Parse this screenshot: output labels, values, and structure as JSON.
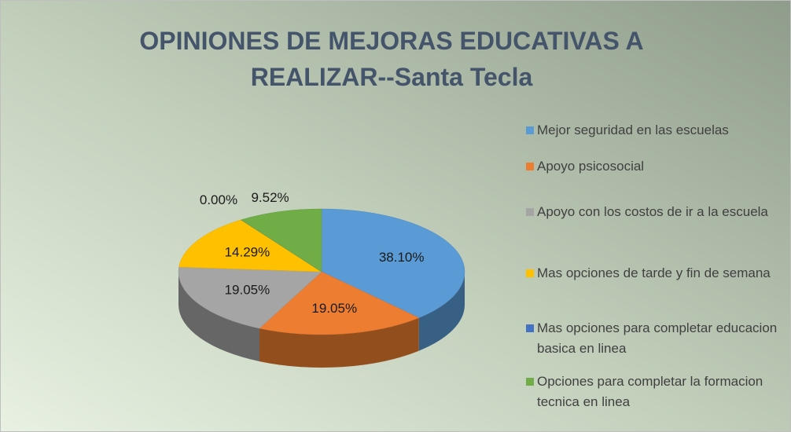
{
  "chart_data": {
    "type": "pie3d",
    "title": "OPINIONES DE MEJORAS EDUCATIVAS A REALIZAR--Santa Tecla",
    "categories": [
      "Mejor seguridad en las escuelas",
      "Apoyo psicosocial",
      "Apoyo con los costos de ir a la escuela",
      "Mas opciones de tarde y fin de semana",
      "Mas opciones para completar educacion basica en linea",
      "Opciones para completar la formacion tecnica en linea"
    ],
    "values": [
      38.1,
      19.05,
      19.05,
      14.29,
      0,
      9.52
    ],
    "value_labels": [
      "38.10%",
      "19.05%",
      "19.05%",
      "14.29%",
      "0.00%",
      "9.52%"
    ],
    "colors": [
      "#5b9bd5",
      "#ed7d31",
      "#a5a5a5",
      "#ffc000",
      "#4472c4",
      "#70ad47"
    ],
    "legend": "right"
  }
}
